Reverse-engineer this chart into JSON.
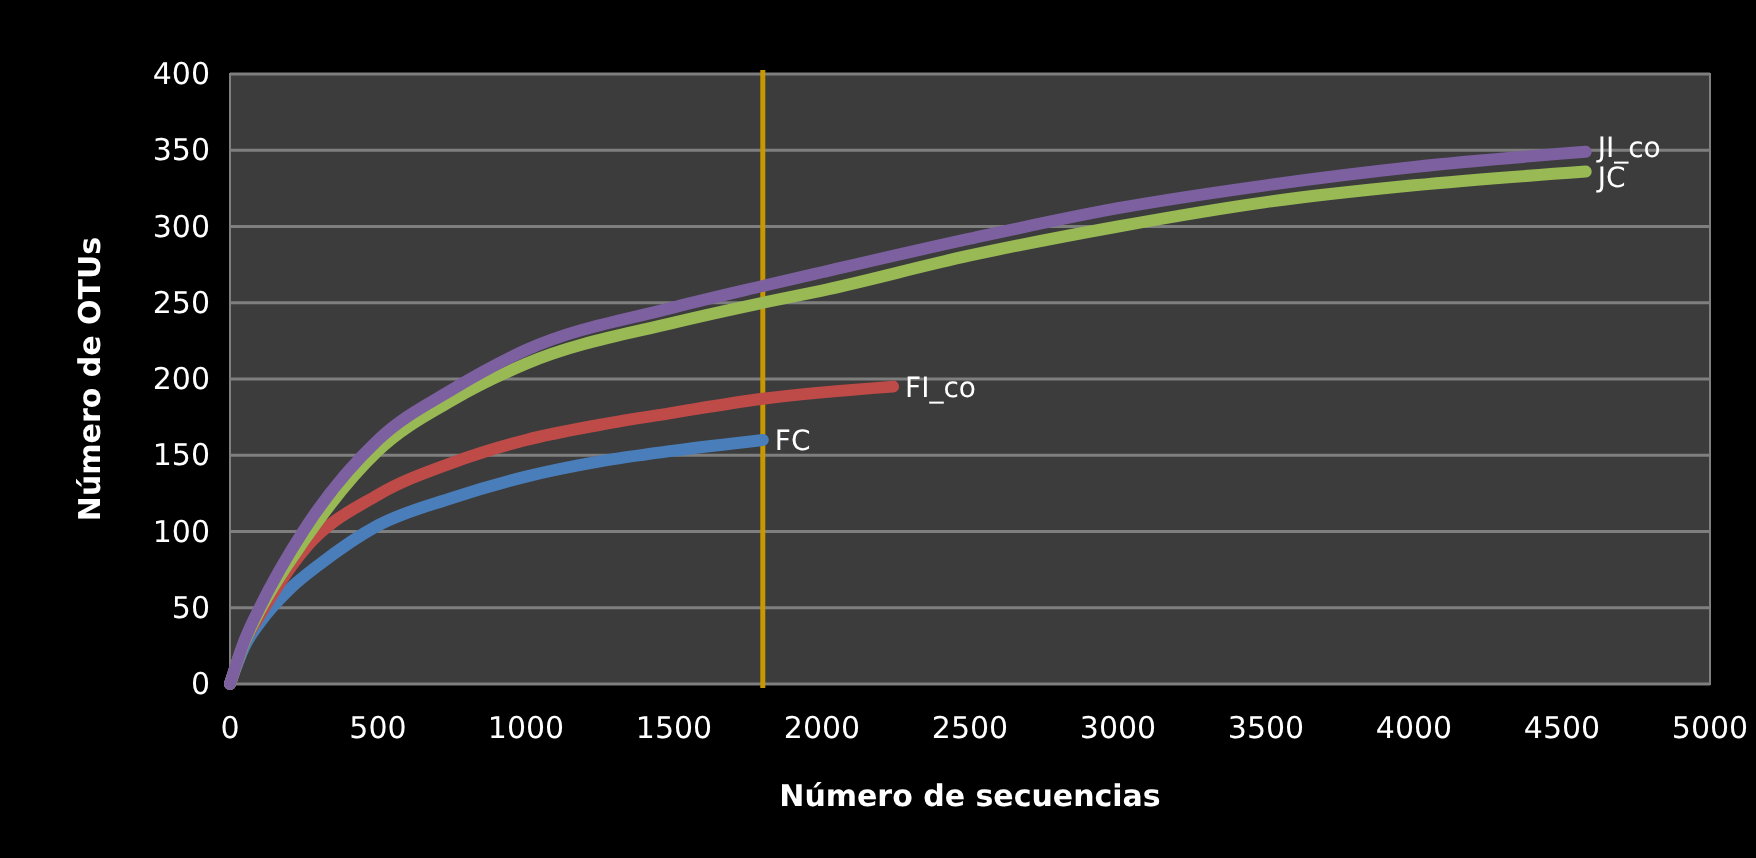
{
  "chart_data": {
    "type": "line",
    "xlabel": "Número de secuencias",
    "ylabel": "Número de OTUs",
    "xlim": [
      0,
      5000
    ],
    "xticks": [
      0,
      500,
      1000,
      1500,
      2000,
      2500,
      3000,
      3500,
      4000,
      4500,
      5000
    ],
    "ylim": [
      0,
      400
    ],
    "yticks": [
      0,
      50,
      100,
      150,
      200,
      250,
      300,
      350,
      400
    ],
    "grid": "y",
    "line_style": "solid",
    "series": [
      {
        "name": "FC",
        "color": "#4a7ebb",
        "x": [
          0,
          50,
          100,
          200,
          300,
          500,
          750,
          1000,
          1250,
          1500,
          1800
        ],
        "values": [
          0,
          25,
          40,
          62,
          78,
          104,
          122,
          136,
          146,
          153,
          160
        ]
      },
      {
        "name": "FI_co",
        "color": "#be4b48",
        "x": [
          0,
          50,
          100,
          250,
          500,
          750,
          1000,
          1250,
          1500,
          1800,
          2240
        ],
        "values": [
          0,
          28,
          45,
          88,
          124,
          145,
          160,
          170,
          178,
          187,
          195
        ]
      },
      {
        "name": "JC",
        "color": "#98b954",
        "x": [
          0,
          50,
          100,
          250,
          500,
          750,
          1000,
          1500,
          1800,
          2000,
          2500,
          3000,
          3500,
          4000,
          4580
        ],
        "values": [
          0,
          28,
          48,
          94,
          153,
          186,
          210,
          237,
          250,
          258,
          281,
          300,
          316,
          327,
          336
        ]
      },
      {
        "name": "JI_co",
        "color": "#7d60a0",
        "x": [
          0,
          50,
          100,
          250,
          500,
          750,
          1000,
          1500,
          1800,
          2000,
          2500,
          3000,
          3500,
          4000,
          4580
        ],
        "values": [
          0,
          29,
          50,
          101,
          160,
          193,
          219,
          247,
          261,
          270,
          292,
          312,
          327,
          339,
          349
        ]
      }
    ],
    "ref_lines": [
      {
        "axis": "x",
        "value": 1800,
        "color": "#c89800"
      }
    ]
  }
}
